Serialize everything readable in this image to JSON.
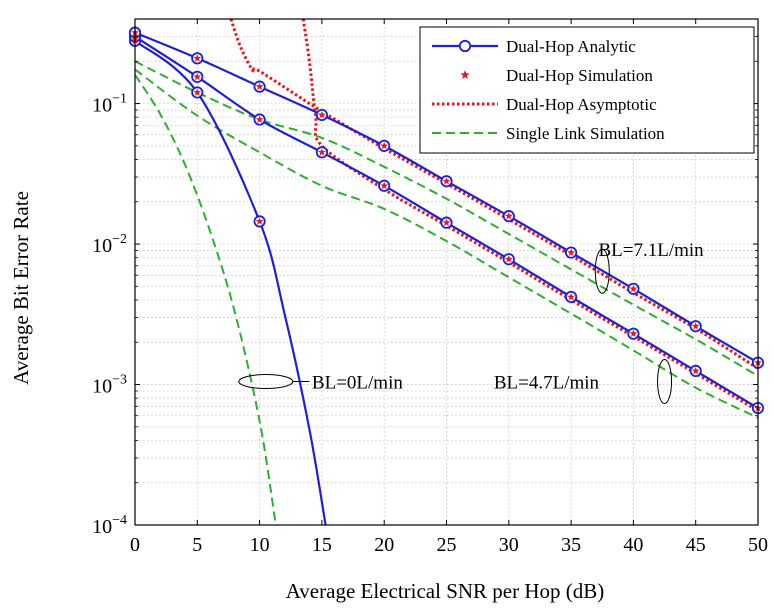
{
  "chart_data": {
    "type": "line",
    "xlabel": "Average Electrical SNR per Hop (dB)",
    "ylabel": "Average Bit Error Rate",
    "xlim": [
      0,
      50
    ],
    "ylim": [
      0.0001,
      0.4
    ],
    "yscale": "log",
    "grid": true,
    "legend_position": "top-right",
    "x_ticks": [
      "0",
      "5",
      "10",
      "15",
      "20",
      "25",
      "30",
      "35",
      "40",
      "45",
      "50"
    ],
    "x_tick_values": [
      0,
      5,
      10,
      15,
      20,
      25,
      30,
      35,
      40,
      45,
      50
    ],
    "y_ticks": [
      {
        "value": 0.1,
        "base": "10",
        "exp": "−1"
      },
      {
        "value": 0.01,
        "base": "10",
        "exp": "−2"
      },
      {
        "value": 0.001,
        "base": "10",
        "exp": "−3"
      },
      {
        "value": 0.0001,
        "base": "10",
        "exp": "−4"
      }
    ],
    "legend": [
      {
        "label": "Dual-Hop Analytic",
        "style": "blue-circle"
      },
      {
        "label": "Dual-Hop Simulation",
        "style": "red-star"
      },
      {
        "label": "Dual-Hop Asymptotic",
        "style": "red-dotted"
      },
      {
        "label": "Single Link Simulation",
        "style": "green-dashed"
      }
    ],
    "series": [
      {
        "group": "BL=0L/min",
        "kind": "analytic",
        "x": [
          0,
          5,
          10,
          12,
          14,
          15.3
        ],
        "y": [
          0.28,
          0.12,
          0.0145,
          0.0032,
          0.00048,
          0.0001
        ]
      },
      {
        "group": "BL=0L/min",
        "kind": "simulation",
        "x": [
          0,
          5,
          10
        ],
        "y": [
          0.28,
          0.12,
          0.0145
        ]
      },
      {
        "group": "BL=0L/min",
        "kind": "single",
        "x": [
          0,
          2,
          4,
          6,
          8,
          10,
          11.3
        ],
        "y": [
          0.16,
          0.085,
          0.037,
          0.0125,
          0.0033,
          0.00055,
          0.0001
        ]
      },
      {
        "group": "BL=4.7L/min",
        "kind": "analytic",
        "x": [
          0,
          5,
          10,
          15,
          20,
          25,
          30,
          35,
          40,
          45,
          50
        ],
        "y": [
          0.3,
          0.155,
          0.077,
          0.045,
          0.026,
          0.0142,
          0.0078,
          0.0042,
          0.0023,
          0.00125,
          0.00068
        ]
      },
      {
        "group": "BL=4.7L/min",
        "kind": "simulation",
        "x": [
          0,
          5,
          10,
          15,
          20,
          25,
          30,
          35,
          40,
          45,
          50
        ],
        "y": [
          0.3,
          0.155,
          0.077,
          0.045,
          0.026,
          0.0142,
          0.0078,
          0.0042,
          0.0023,
          0.00125,
          0.00068
        ]
      },
      {
        "group": "BL=4.7L/min",
        "kind": "asymptotic",
        "x": [
          13.5,
          14,
          14.5,
          15,
          20,
          25,
          30,
          35,
          40,
          45,
          50
        ],
        "y": [
          0.4,
          0.2,
          0.08,
          0.05,
          0.0245,
          0.0135,
          0.0074,
          0.004,
          0.0022,
          0.0012,
          0.00065
        ]
      },
      {
        "group": "BL=4.7L/min",
        "kind": "single",
        "x": [
          0,
          5,
          10,
          15,
          20,
          25,
          30,
          35,
          40,
          45,
          50
        ],
        "y": [
          0.175,
          0.082,
          0.045,
          0.026,
          0.0178,
          0.0105,
          0.0058,
          0.0032,
          0.00175,
          0.00095,
          0.00058
        ]
      },
      {
        "group": "BL=7.1L/min",
        "kind": "analytic",
        "x": [
          0,
          5,
          10,
          15,
          20,
          25,
          30,
          35,
          40,
          45,
          50
        ],
        "y": [
          0.32,
          0.21,
          0.132,
          0.083,
          0.05,
          0.028,
          0.0158,
          0.0087,
          0.0048,
          0.0026,
          0.00143
        ]
      },
      {
        "group": "BL=7.1L/min",
        "kind": "simulation",
        "x": [
          0,
          5,
          10,
          15,
          20,
          25,
          30,
          35,
          40,
          45,
          50
        ],
        "y": [
          0.32,
          0.21,
          0.132,
          0.083,
          0.05,
          0.028,
          0.0158,
          0.0087,
          0.0048,
          0.0026,
          0.00143
        ]
      },
      {
        "group": "BL=7.1L/min",
        "kind": "asymptotic",
        "x": [
          7.7,
          8.5,
          9.5,
          10,
          15,
          20,
          25,
          30,
          35,
          40,
          45,
          50
        ],
        "y": [
          0.4,
          0.25,
          0.17,
          0.17,
          0.088,
          0.048,
          0.027,
          0.015,
          0.0083,
          0.0045,
          0.0025,
          0.0013
        ]
      },
      {
        "group": "BL=7.1L/min",
        "kind": "single",
        "x": [
          0,
          5,
          10,
          15,
          20,
          25,
          30,
          35,
          40,
          45,
          50
        ],
        "y": [
          0.2,
          0.12,
          0.077,
          0.057,
          0.0355,
          0.021,
          0.0118,
          0.0066,
          0.0037,
          0.0021,
          0.00115
        ]
      }
    ],
    "annotations": [
      {
        "text": "BL=0L/min",
        "x": 14.2,
        "y": 0.00105
      },
      {
        "text": "BL=4.7L/min",
        "x": 28.8,
        "y": 0.00105
      },
      {
        "text": "BL=7.1L/min",
        "x": 37.2,
        "y": 0.0092
      }
    ],
    "colors": {
      "analytic": "#1f1fd6",
      "simulation": "#e8141b",
      "asymptotic": "#e8141b",
      "single": "#2fae2f",
      "grid": "#bbbbbb"
    }
  }
}
